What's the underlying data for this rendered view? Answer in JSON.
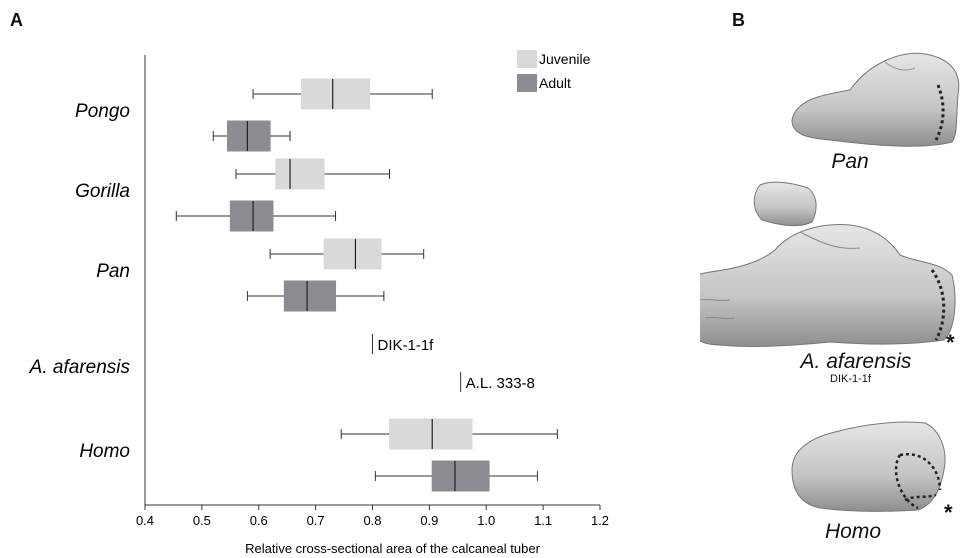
{
  "panels": {
    "a_letter": "A",
    "b_letter": "B"
  },
  "chart_data": {
    "type": "boxplot",
    "orientation": "horizontal",
    "xlabel": "Relative cross-sectional area of the calcaneal tuber",
    "xlim": [
      0.4,
      1.2
    ],
    "xticks": [
      "0.4",
      "0.5",
      "0.6",
      "0.7",
      "0.8",
      "0.9",
      "1.0",
      "1.1",
      "1.2"
    ],
    "grid": false,
    "legend": {
      "placement": "top-right",
      "entries": [
        {
          "label": "Juvenile",
          "color": "#d9d9d9"
        },
        {
          "label": "Adult",
          "color": "#8c8c93"
        }
      ]
    },
    "groups": [
      {
        "name": "Pongo",
        "boxes": [
          {
            "series": "Juvenile",
            "min": 0.59,
            "q1": 0.675,
            "median": 0.73,
            "q3": 0.795,
            "max": 0.905
          },
          {
            "series": "Adult",
            "min": 0.52,
            "q1": 0.545,
            "median": 0.58,
            "q3": 0.62,
            "max": 0.655
          }
        ]
      },
      {
        "name": "Gorilla",
        "boxes": [
          {
            "series": "Juvenile",
            "min": 0.56,
            "q1": 0.63,
            "median": 0.655,
            "q3": 0.715,
            "max": 0.83
          },
          {
            "series": "Adult",
            "min": 0.455,
            "q1": 0.55,
            "median": 0.59,
            "q3": 0.625,
            "max": 0.735
          }
        ]
      },
      {
        "name": "Pan",
        "boxes": [
          {
            "series": "Juvenile",
            "min": 0.62,
            "q1": 0.715,
            "median": 0.77,
            "q3": 0.815,
            "max": 0.89
          },
          {
            "series": "Adult",
            "min": 0.58,
            "q1": 0.645,
            "median": 0.685,
            "q3": 0.735,
            "max": 0.82
          }
        ]
      },
      {
        "name": "A. afarensis",
        "points": [
          {
            "label": "DIK-1-1f",
            "value": 0.8
          },
          {
            "label": "A.L. 333-8",
            "value": 0.955
          }
        ]
      },
      {
        "name": "Homo",
        "boxes": [
          {
            "series": "Juvenile",
            "min": 0.745,
            "q1": 0.83,
            "median": 0.905,
            "q3": 0.975,
            "max": 1.125
          },
          {
            "series": "Adult",
            "min": 0.805,
            "q1": 0.905,
            "median": 0.945,
            "q3": 1.005,
            "max": 1.09
          }
        ]
      }
    ]
  },
  "panel_b": {
    "labels": [
      {
        "text": "Pan"
      },
      {
        "text": "A. afarensis",
        "sub": "DIK-1-1f",
        "asterisk": "*"
      },
      {
        "text": "Homo",
        "asterisk": "*"
      }
    ],
    "bone_color": "#c9c9c9"
  }
}
